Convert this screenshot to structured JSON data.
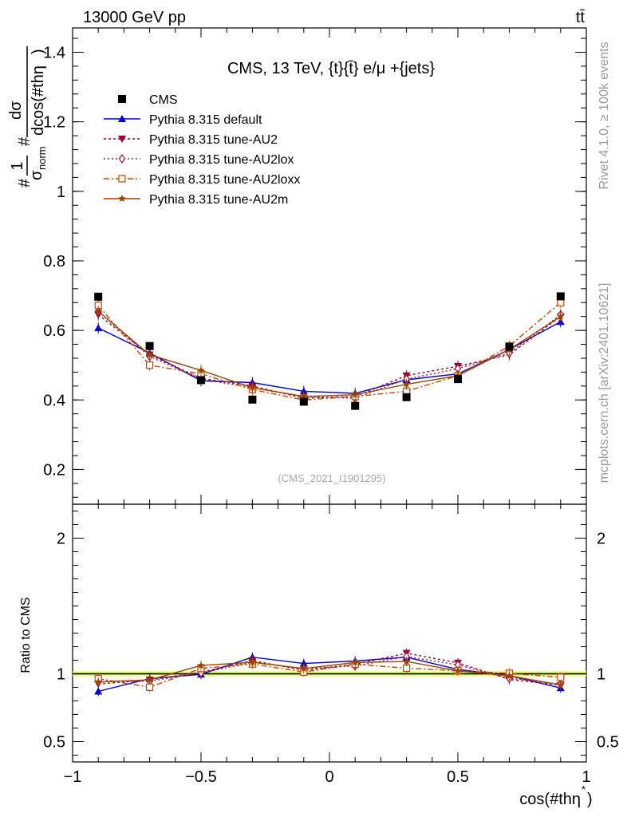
{
  "header": {
    "energy_label": "13000 GeV pp",
    "process_label": "tt̄",
    "plot_title": "CMS, 13 TeV, {t}{t̄} e/μ +{jets}",
    "watermark": "(CMS_2021_I1901295)",
    "side_label_top": "Rivet 4.1.0, ≥ 100k events",
    "side_label_bottom": "mcplots.cern.ch [arXiv:2401.10621]"
  },
  "chart_data": {
    "type": "scatter",
    "xlabel": "cos(#thη*)",
    "xlabel_main": "cos(#thη",
    "xlabel_sup": "*",
    "xlabel_close": ")",
    "ylabel": "#1/σ_norm #dσ/dcos(#thη)",
    "ylabel_parts": {
      "hash1": "#",
      "one": "1",
      "sigma": "σ",
      "sigma_sub": "norm",
      "hash2": "#",
      "dsigma": "dσ",
      "dcos": "dcos(#thη",
      "close": ")"
    },
    "ratio_ylabel": "Ratio to CMS",
    "xlim": [
      -1.0,
      1.0
    ],
    "ylim": [
      0.1,
      1.47
    ],
    "ratio_ylim": [
      0.35,
      2.25
    ],
    "x_ticks": [
      {
        "value": -1.0,
        "label": "−1"
      },
      {
        "value": -0.5,
        "label": "−0.5"
      },
      {
        "value": 0.0,
        "label": "0"
      },
      {
        "value": 0.5,
        "label": "0.5"
      },
      {
        "value": 1.0,
        "label": "1"
      }
    ],
    "y_ticks": [
      {
        "value": 0.2,
        "label": "0.2"
      },
      {
        "value": 0.4,
        "label": "0.4"
      },
      {
        "value": 0.6,
        "label": "0.6"
      },
      {
        "value": 0.8,
        "label": "0.8"
      },
      {
        "value": 1.0,
        "label": "1"
      },
      {
        "value": 1.2,
        "label": "1.2"
      },
      {
        "value": 1.4,
        "label": "1.4"
      }
    ],
    "ratio_y_ticks": [
      {
        "value": 0.5,
        "label": "0.5"
      },
      {
        "value": 1.0,
        "label": "1"
      },
      {
        "value": 2.0,
        "label": "2"
      }
    ],
    "x": [
      -0.9,
      -0.7,
      -0.5,
      -0.3,
      -0.1,
      0.1,
      0.3,
      0.5,
      0.7,
      0.9
    ],
    "data": {
      "name": "CMS",
      "values": [
        0.697,
        0.555,
        0.457,
        0.401,
        0.395,
        0.383,
        0.408,
        0.46,
        0.553,
        0.698
      ],
      "ratio_band": [
        0.02,
        0.02,
        0.02,
        0.02,
        0.02,
        0.02,
        0.02,
        0.02,
        0.02,
        0.02
      ]
    },
    "series": [
      {
        "name": "Pythia 8.315 default",
        "color": "#0000d0",
        "marker": "triangle-up",
        "dash": "",
        "values": [
          0.607,
          0.535,
          0.455,
          0.45,
          0.425,
          0.419,
          0.458,
          0.475,
          0.545,
          0.625
        ]
      },
      {
        "name": "Pythia 8.315 tune-AU2",
        "color": "#990033",
        "marker": "triangle-down",
        "dash": "3,3",
        "values": [
          0.645,
          0.53,
          0.462,
          0.44,
          0.405,
          0.41,
          0.47,
          0.497,
          0.53,
          0.64
        ]
      },
      {
        "name": "Pythia 8.315 tune-AU2lox",
        "color": "#aa1133",
        "marker": "diamond-open",
        "dash": "2,3",
        "values": [
          0.655,
          0.525,
          0.46,
          0.435,
          0.41,
          0.405,
          0.46,
          0.49,
          0.535,
          0.645
        ]
      },
      {
        "name": "Pythia 8.315 tune-AU2loxx",
        "color": "#cc4400",
        "marker": "square-open",
        "dash": "7,3,2,3",
        "values": [
          0.672,
          0.5,
          0.475,
          0.43,
          0.4,
          0.41,
          0.425,
          0.47,
          0.555,
          0.68
        ]
      },
      {
        "name": "Pythia 8.315 tune-AU2m",
        "color": "#994400",
        "marker": "star",
        "dash": "",
        "values": [
          0.655,
          0.53,
          0.485,
          0.435,
          0.41,
          0.415,
          0.445,
          0.47,
          0.545,
          0.64
        ]
      }
    ],
    "legend_position": "top-left"
  }
}
